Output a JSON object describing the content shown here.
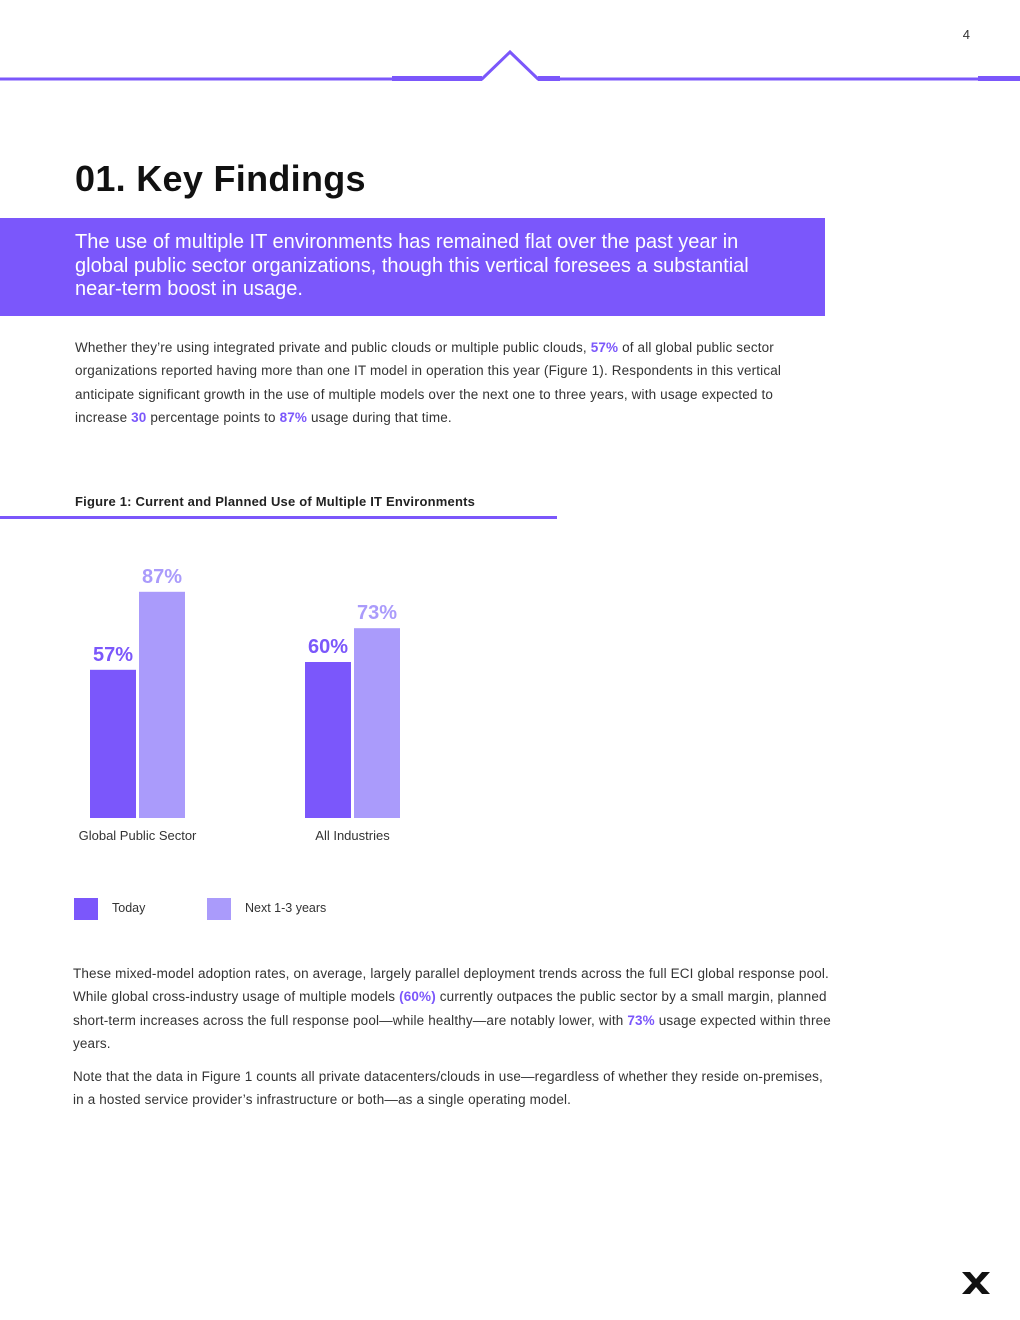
{
  "page": {
    "number": "4"
  },
  "colors": {
    "accent": "#7b57fb",
    "accent_light": "#aa9bfb",
    "text": "#333333",
    "title": "#111111"
  },
  "section": {
    "title": "01. Key Findings"
  },
  "callout": {
    "text": "The use of multiple IT environments has remained flat over the past year in global public sector organizations, though this vertical foresees a substantial near-term boost in usage."
  },
  "intro": {
    "p1": "Whether they’re using integrated private and public clouds or multiple public clouds, ",
    "h1": "57%",
    "p2": " of all global public sector organizations reported having more than one IT model in operation this year (Figure 1). Respondents in this vertical anticipate significant growth in the use of multiple models over the next one to three years, with usage expected to increase ",
    "h2": "30",
    "p3": " percentage points to ",
    "h3": "87%",
    "p4": " usage during that time."
  },
  "figure": {
    "title": "Figure 1: Current and Planned Use of Multiple IT Environments"
  },
  "chart_data": {
    "type": "bar",
    "categories": [
      "Global Public Sector",
      "All Industries"
    ],
    "series": [
      {
        "name": "Today",
        "values": [
          57,
          60
        ],
        "color": "#7b57fb"
      },
      {
        "name": "Next 1-3 years",
        "values": [
          87,
          73
        ],
        "color": "#aa9bfb"
      }
    ],
    "data_labels": [
      [
        "57%",
        "60%"
      ],
      [
        "87%",
        "73%"
      ]
    ],
    "ylim": [
      0,
      100
    ],
    "legend_position": "bottom-left",
    "grid": false
  },
  "body": {
    "p1a": "These mixed-model adoption rates, on average, largely parallel deployment trends across the full ECI global response pool. While global cross-industry usage of multiple models ",
    "h1": "(60%)",
    "p1b": " currently outpaces the public sector by a small margin, planned short-term increases across the full response pool—while healthy—are notably lower, with ",
    "h2": "73%",
    "p1c": " usage expected within three years.",
    "p2": "Note that the data in Figure 1 counts all private datacenters/clouds in use—regardless of whether they reside on-premises, in a hosted service provider’s infrastructure or both—as a single operating model."
  },
  "logo": {
    "icon": "x-logo-icon"
  }
}
